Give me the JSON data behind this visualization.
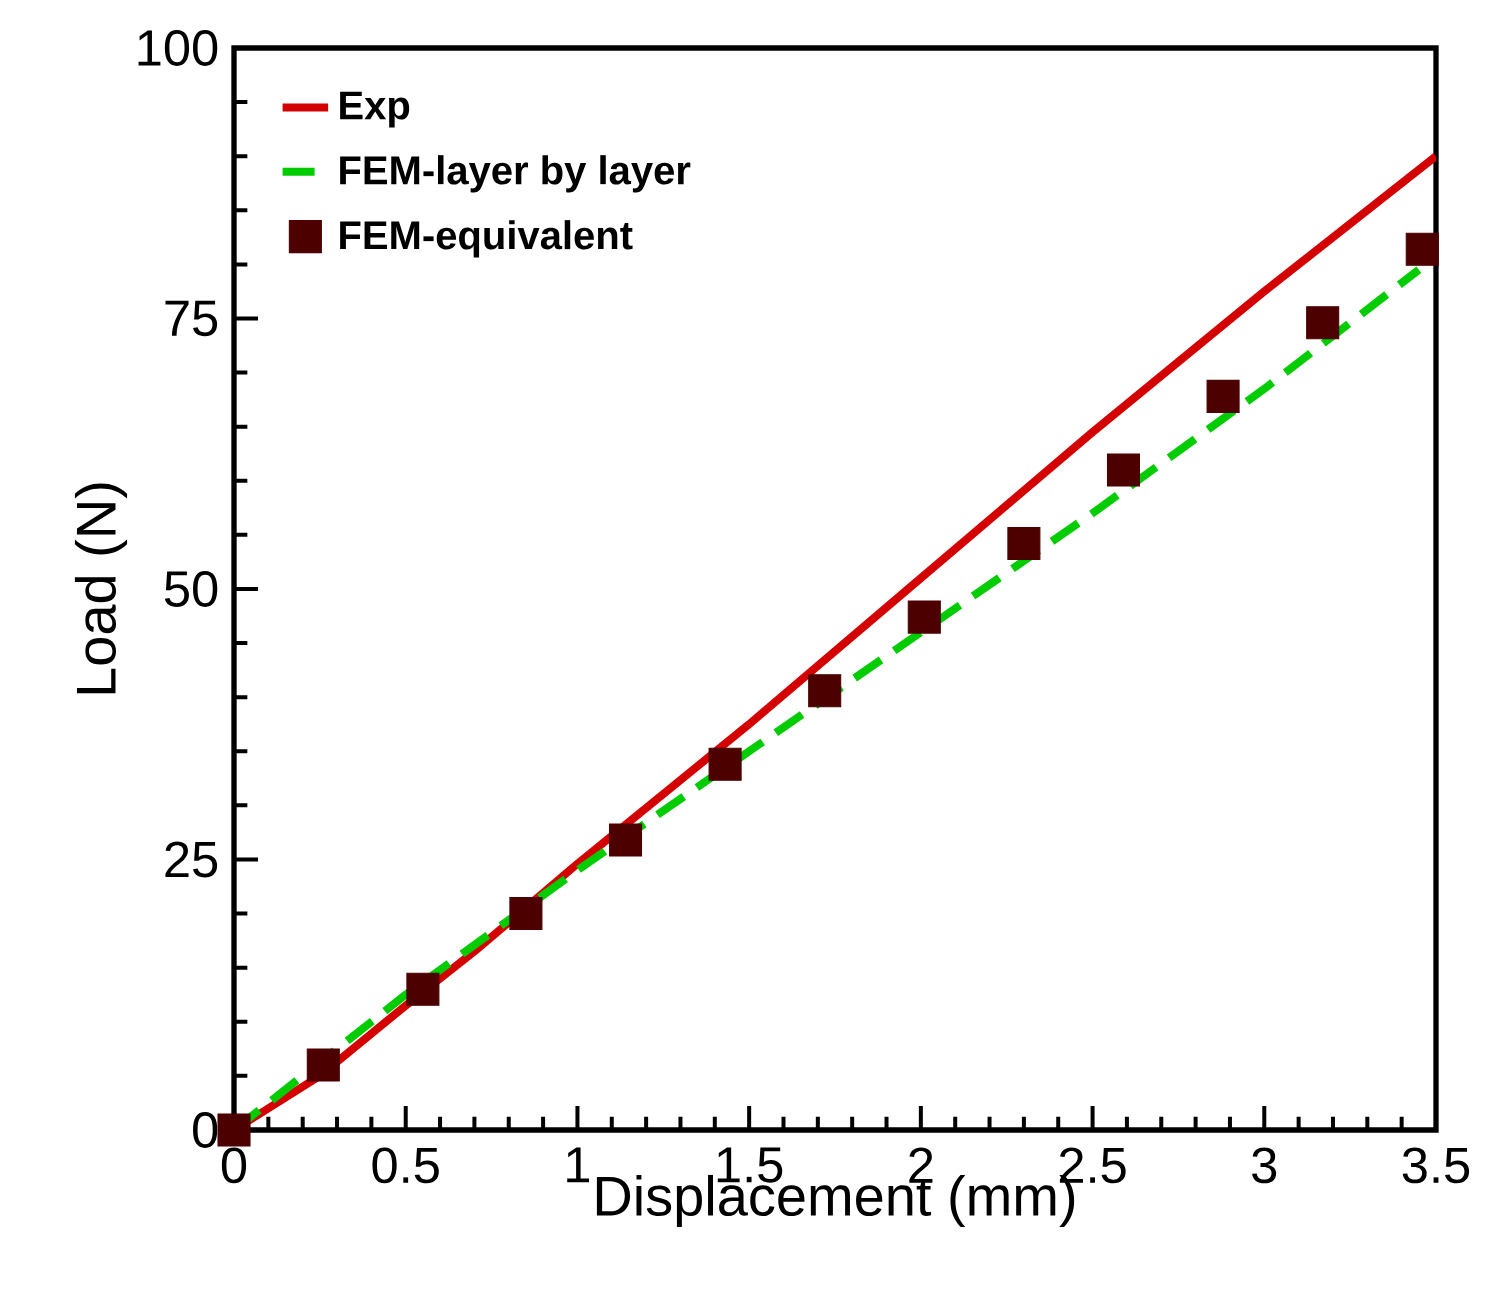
{
  "chart_data": {
    "type": "line",
    "xlabel": "Displacement (mm)",
    "ylabel": "Load (N)",
    "xlim": [
      0,
      3.5
    ],
    "ylim": [
      0,
      100
    ],
    "xticks": [
      0,
      0.5,
      1,
      1.5,
      2,
      2.5,
      3,
      3.5
    ],
    "yticks": [
      0,
      25,
      50,
      75,
      100
    ],
    "grid": false,
    "legend": "top left",
    "series": [
      {
        "name": "Exp",
        "color": "#d40000",
        "line_style": "solid",
        "marker": "none",
        "x": [
          0,
          0.25,
          0.5,
          0.7,
          1,
          1.5,
          2,
          2.5,
          3,
          3.5
        ],
        "values": [
          0,
          5,
          11.5,
          16.5,
          24.6,
          37.5,
          51,
          64.5,
          77.5,
          90
        ]
      },
      {
        "name": "FEM-layer by layer",
        "color": "#00cc00",
        "line_style": "dashed",
        "marker": "none",
        "x": [
          0,
          0.5,
          1,
          1.5,
          2,
          2.5,
          3,
          3.45
        ],
        "values": [
          0,
          12.5,
          24,
          35,
          46,
          57,
          68.5,
          79.5
        ]
      },
      {
        "name": "FEM-equivalent",
        "type": "scatter",
        "color": "#4d0000",
        "marker": "square",
        "x": [
          0,
          0.26,
          0.55,
          0.85,
          1.14,
          1.43,
          1.72,
          2.01,
          2.3,
          2.59,
          2.88,
          3.17,
          3.46
        ],
        "values": [
          0,
          6,
          13,
          20,
          26.8,
          33.8,
          40.6,
          47.4,
          54.2,
          61,
          67.8,
          74.6,
          81.4
        ]
      }
    ]
  }
}
